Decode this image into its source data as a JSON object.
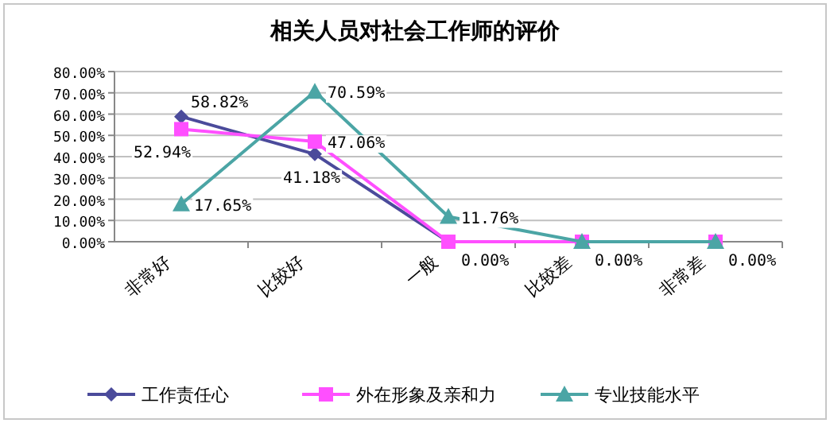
{
  "chart_data": {
    "type": "line",
    "title": "相关人员对社会工作师的评价",
    "categories": [
      "非常好",
      "比较好",
      "一般",
      "比较差",
      "非常差"
    ],
    "series": [
      {
        "name": "工作责任心",
        "color": "#4b4b9b",
        "marker": "diamond",
        "values": [
          58.82,
          41.18,
          0,
          0,
          0
        ],
        "value_labels": [
          "58.82%",
          "41.18%",
          null,
          null,
          null
        ]
      },
      {
        "name": "外在形象及亲和力",
        "color": "#ff4fff",
        "marker": "square",
        "values": [
          52.94,
          47.06,
          0,
          0,
          0
        ],
        "value_labels": [
          "52.94%",
          "47.06%",
          "0.00%",
          "0.00%",
          "0.00%"
        ]
      },
      {
        "name": "专业技能水平",
        "color": "#4ba5a5",
        "marker": "triangle",
        "values": [
          17.65,
          70.59,
          11.76,
          0,
          0
        ],
        "value_labels": [
          "17.65%",
          "70.59%",
          "11.76%",
          null,
          null
        ]
      }
    ],
    "ylim": [
      0,
      80
    ],
    "yticks": [
      {
        "value": 0,
        "label": "0.00%"
      },
      {
        "value": 10,
        "label": "10.00%"
      },
      {
        "value": 20,
        "label": "20.00%"
      },
      {
        "value": 30,
        "label": "30.00%"
      },
      {
        "value": 40,
        "label": "40.00%"
      },
      {
        "value": 50,
        "label": "50.00%"
      },
      {
        "value": 60,
        "label": "60.00%"
      },
      {
        "value": 70,
        "label": "70.00%"
      },
      {
        "value": 80,
        "label": "80.00%"
      }
    ],
    "grid": "y",
    "legend": "bottom"
  }
}
